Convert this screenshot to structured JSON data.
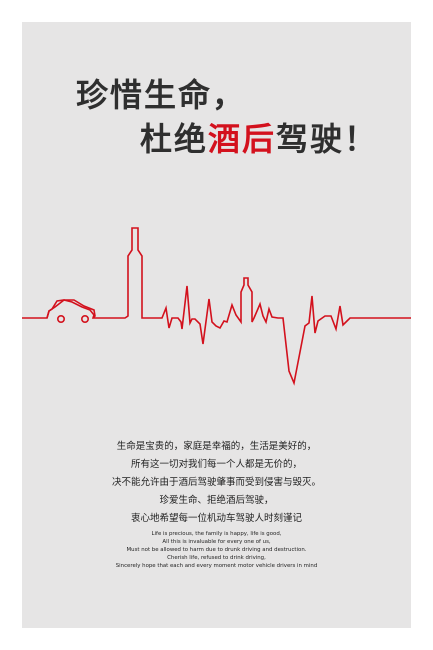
{
  "title": {
    "line1": "珍惜生命，",
    "line2_prefix": "杜绝",
    "line2_highlight": "酒后",
    "line2_suffix": "驾驶！"
  },
  "body_cn": [
    "生命是宝贵的，家庭是幸福的，生活是美好的，",
    "所有这一切对我们每一个人都是无价的，",
    "决不能允许由于酒后驾驶肇事而受到侵害与毁灭。",
    "珍爱生命、拒绝酒后驾驶，",
    "衷心地希望每一位机动车驾驶人时刻谨记"
  ],
  "body_en": [
    "Life is precious, the family is happy, life is good,",
    "All this is invaluable for every one of us,",
    "Must not be allowed to harm due to drunk driving and destruction.",
    "Cherish life, refused to drink driving,",
    "Sincerely hope that each and every moment motor vehicle drivers in mind"
  ],
  "icons": {
    "car": "car-icon",
    "bottle": "bottle-icon",
    "heartbeat": "heartbeat-line"
  },
  "colors": {
    "background": "#e6e5e5",
    "accent": "#d3111d",
    "text": "#2f2f2f"
  }
}
